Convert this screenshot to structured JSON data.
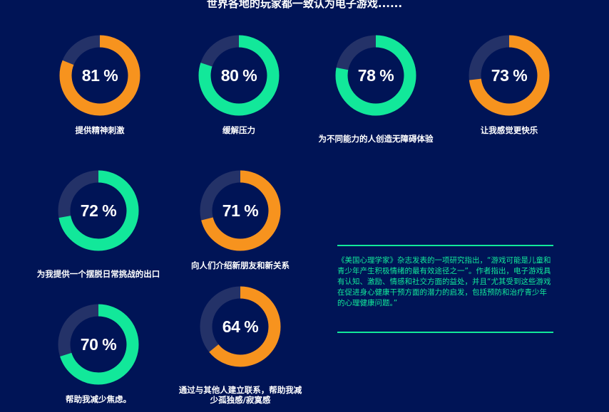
{
  "title": "世界各地的玩家都一致认为电子游戏......",
  "colors": {
    "background": "#001456",
    "orange": "#f7931e",
    "green": "#12e89a",
    "track": "#243268"
  },
  "stats": [
    {
      "percent": 81,
      "label_text": "81 %",
      "label": "提供精神刺激",
      "color": "orange"
    },
    {
      "percent": 80,
      "label_text": "80 %",
      "label": "缓解压力",
      "color": "green"
    },
    {
      "percent": 78,
      "label_text": "78 %",
      "label": "为不同能力的人创造无障碍体验",
      "color": "green"
    },
    {
      "percent": 73,
      "label_text": "73 %",
      "label": "让我感觉更快乐",
      "color": "orange"
    },
    {
      "percent": 72,
      "label_text": "72 %",
      "label": "为我提供一个摆脱日常挑战的出口",
      "color": "green"
    },
    {
      "percent": 71,
      "label_text": "71 %",
      "label": "向人们介绍新朋友和新关系",
      "color": "orange"
    },
    {
      "percent": 70,
      "label_text": "70 %",
      "label": "帮助我减少焦虑。",
      "color": "green"
    },
    {
      "percent": 64,
      "label_text": "64 %",
      "label": "通过与其他人建立联系，帮助我减少孤独感/寂寞感",
      "color": "orange"
    }
  ],
  "quote": "《美国心理学家》杂志发表的一项研究指出，“游戏可能是儿童和青少年产生积极情绪的最有效途径之一”。作者指出，电子游戏具有认知、激励、情感和社交方面的益处，并且“尤其受到这些游戏在促进身心健康干预方面的潜力的启发，包括预防和治疗青少年的心理健康问题。”"
}
